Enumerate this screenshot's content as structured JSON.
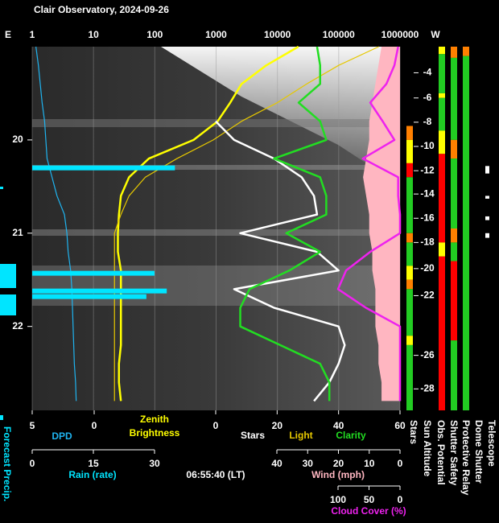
{
  "chart_data": {
    "type": "line",
    "title": "Clair Observatory, 2024-09-26",
    "timestamp": "06:55:40 (LT)",
    "east_label": "E",
    "west_label": "W",
    "forecast_precip_label": "Forecast Precip.",
    "grid": true,
    "time": {
      "x": [
        19.0,
        19.2,
        19.4,
        19.6,
        19.8,
        20.0,
        20.2,
        20.4,
        20.6,
        20.8,
        21.0,
        21.2,
        21.4,
        21.6,
        21.8,
        22.0,
        22.2,
        22.4,
        22.6,
        22.8
      ],
      "ylim": [
        19.0,
        22.9
      ],
      "yticks": [
        20,
        21,
        22
      ]
    },
    "axes": {
      "top": {
        "scale": "log",
        "xlim": [
          1,
          1000000
        ],
        "xticks": [
          1,
          10,
          100,
          1000,
          10000,
          100000,
          1000000
        ]
      },
      "dpd": {
        "xlim": [
          5,
          0
        ],
        "xticks": [
          5,
          0
        ]
      },
      "stars": {
        "xlim": [
          0,
          60
        ],
        "xticks": [
          0,
          20,
          40,
          60
        ]
      },
      "rain": {
        "xlim": [
          0,
          30
        ],
        "xticks": [
          0,
          15,
          30
        ]
      },
      "wind": {
        "xlim": [
          40,
          0
        ],
        "xticks": [
          40,
          30,
          20,
          10,
          0
        ]
      },
      "cloud": {
        "xlim": [
          100,
          0
        ],
        "xticks": [
          100,
          50,
          0
        ]
      }
    },
    "series": [
      {
        "name": "DPD",
        "color": "#1fb4f0",
        "axis": "dpd",
        "style": "line",
        "values": [
          4.7,
          4.5,
          4.35,
          4.2,
          4.0,
          3.9,
          3.8,
          3.4,
          3.0,
          2.4,
          2.2,
          2.1,
          1.9,
          1.8,
          1.75,
          1.7,
          1.65,
          1.6,
          1.5,
          1.45
        ]
      },
      {
        "name": "Zenith Brightness",
        "color": "#ffff00",
        "axis": "top",
        "style": "thick",
        "values": [
          22000,
          6600,
          2600,
          1700,
          1060,
          430,
          80,
          38,
          28,
          26,
          25,
          25,
          28,
          28,
          28,
          28,
          28,
          26,
          26,
          28
        ]
      },
      {
        "name": "Light",
        "color": "#e6c800",
        "axis": "top",
        "style": "line",
        "values": [
          450000,
          100000,
          30000,
          10000,
          2600,
          900,
          230,
          70,
          38,
          28,
          22,
          22,
          22,
          22,
          22,
          22,
          22,
          22,
          22,
          22
        ]
      },
      {
        "name": "Stars",
        "color": "#ffffff",
        "axis": "stars",
        "style": "thick",
        "values": [
          null,
          null,
          null,
          null,
          0,
          6,
          19,
          28,
          32,
          33,
          8,
          33,
          40,
          6,
          19,
          40,
          42,
          40,
          37,
          32
        ]
      },
      {
        "name": "Clarity",
        "color": "#22dd22",
        "axis": "stars",
        "style": "thick",
        "values": [
          33,
          34,
          34,
          27,
          34,
          36,
          19,
          34,
          36,
          36,
          23,
          34,
          24,
          11,
          8,
          8,
          21,
          34,
          37,
          37
        ]
      },
      {
        "name": "Wind (mph)",
        "color": "#ffb6c1",
        "axis": "wind",
        "style": "area",
        "values": [
          6,
          7,
          8,
          9,
          10,
          10,
          11,
          12,
          11,
          10,
          10,
          9,
          9,
          8,
          8,
          8,
          7,
          7,
          6,
          6
        ]
      },
      {
        "name": "Cloud Cover (%)",
        "color": "#ee22ee",
        "axis": "cloud",
        "style": "thick",
        "values": [
          3,
          9,
          22,
          48,
          28,
          9,
          60,
          3,
          3,
          0,
          0,
          48,
          87,
          100,
          55,
          0,
          0,
          0,
          0,
          0
        ]
      },
      {
        "name": "Rain (rate)",
        "color": "#00e5ff",
        "axis": "rain",
        "style": "bar",
        "x": [
          20.3,
          21.43,
          21.62,
          21.68
        ],
        "values": [
          35,
          30,
          33,
          28
        ]
      }
    ],
    "sun_altitude": {
      "label": "Sun Altitude",
      "ticks": [
        -4,
        -6,
        -8,
        -10,
        -12,
        -14,
        -16,
        -18,
        -20,
        -22,
        -26,
        -28
      ],
      "tick_times": [
        19.28,
        19.55,
        19.81,
        20.07,
        20.33,
        20.58,
        20.84,
        21.1,
        21.38,
        21.67,
        22.31,
        22.67
      ]
    },
    "status_columns": [
      {
        "label": "Stars",
        "segments": [
          {
            "from": 19.85,
            "to": 20.0,
            "color": "#ff8000"
          },
          {
            "from": 20.0,
            "to": 20.25,
            "color": "#ffff00"
          },
          {
            "from": 20.25,
            "to": 20.4,
            "color": "#ff0000"
          },
          {
            "from": 20.4,
            "to": 21.0,
            "color": "#22cc22"
          },
          {
            "from": 21.0,
            "to": 21.1,
            "color": "#ff8000"
          },
          {
            "from": 21.1,
            "to": 21.35,
            "color": "#22cc22"
          },
          {
            "from": 21.35,
            "to": 21.5,
            "color": "#ffff00"
          },
          {
            "from": 21.5,
            "to": 21.6,
            "color": "#ff8000"
          },
          {
            "from": 21.6,
            "to": 22.1,
            "color": "#22cc22"
          },
          {
            "from": 22.1,
            "to": 22.2,
            "color": "#ffff00"
          },
          {
            "from": 22.2,
            "to": 22.9,
            "color": "#22cc22"
          }
        ]
      },
      {
        "label": "Obs. Potential",
        "segments": [
          {
            "from": 19.0,
            "to": 19.08,
            "color": "#ffff00"
          },
          {
            "from": 19.08,
            "to": 19.5,
            "color": "#22cc22"
          },
          {
            "from": 19.5,
            "to": 19.55,
            "color": "#ffff00"
          },
          {
            "from": 19.55,
            "to": 19.9,
            "color": "#22cc22"
          },
          {
            "from": 19.9,
            "to": 20.15,
            "color": "#ffff00"
          },
          {
            "from": 20.15,
            "to": 21.1,
            "color": "#ff0000"
          },
          {
            "from": 21.1,
            "to": 21.25,
            "color": "#ffff00"
          },
          {
            "from": 21.25,
            "to": 22.9,
            "color": "#ff0000"
          }
        ]
      },
      {
        "label": "Shutter Safety",
        "segments": [
          {
            "from": 19.0,
            "to": 19.12,
            "color": "#ff8000"
          },
          {
            "from": 19.12,
            "to": 20.0,
            "color": "#22cc22"
          },
          {
            "from": 20.0,
            "to": 20.2,
            "color": "#ff8000"
          },
          {
            "from": 20.2,
            "to": 20.95,
            "color": "#22cc22"
          },
          {
            "from": 20.95,
            "to": 21.1,
            "color": "#ff8000"
          },
          {
            "from": 21.1,
            "to": 21.3,
            "color": "#22cc22"
          },
          {
            "from": 21.3,
            "to": 22.15,
            "color": "#ff0000"
          },
          {
            "from": 22.15,
            "to": 22.9,
            "color": "#22cc22"
          }
        ]
      },
      {
        "label": "Protective Relay",
        "segments": [
          {
            "from": 19.0,
            "to": 19.1,
            "color": "#ff8000"
          },
          {
            "from": 19.1,
            "to": 22.9,
            "color": "#22cc22"
          }
        ]
      },
      {
        "label": "Dome Shutter",
        "segments": []
      },
      {
        "label": "Telescope",
        "segments": [
          {
            "from": 20.28,
            "to": 20.36,
            "color": "#ffffff"
          },
          {
            "from": 20.6,
            "to": 20.63,
            "color": "#ffffff"
          },
          {
            "from": 20.82,
            "to": 20.86,
            "color": "#ffffff"
          },
          {
            "from": 21.0,
            "to": 21.05,
            "color": "#ffffff"
          }
        ]
      }
    ]
  }
}
